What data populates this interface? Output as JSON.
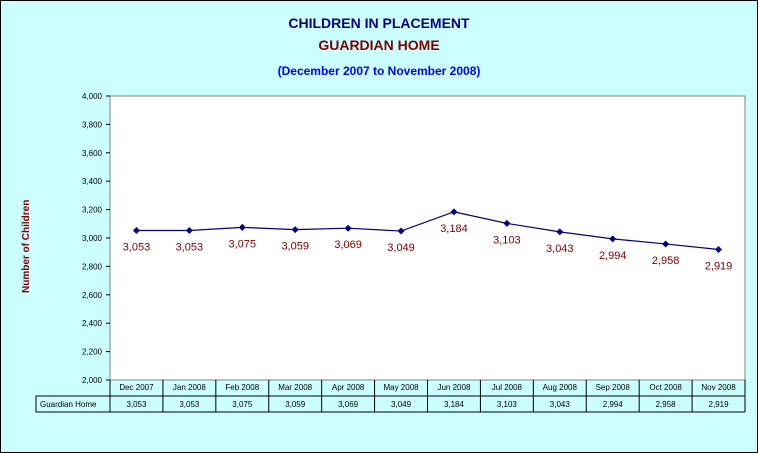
{
  "chart_data": {
    "type": "line",
    "title": "CHILDREN IN PLACEMENT",
    "subtitle": "GUARDIAN HOME",
    "period": "(December 2007 to November 2008)",
    "ylabel": "Number of Children",
    "ylim": [
      2000,
      4000
    ],
    "yticks": [
      "2,000",
      "2,200",
      "2,400",
      "2,600",
      "2,800",
      "3,000",
      "3,200",
      "3,400",
      "3,600",
      "3,800",
      "4,000"
    ],
    "ytick_values": [
      2000,
      2200,
      2400,
      2600,
      2800,
      3000,
      3200,
      3400,
      3600,
      3800,
      4000
    ],
    "categories": [
      "Dec 2007",
      "Jan 2008",
      "Feb 2008",
      "Mar 2008",
      "Apr 2008",
      "May 2008",
      "Jun 2008",
      "Jul 2008",
      "Aug 2008",
      "Sep 2008",
      "Oct 2008",
      "Nov 2008"
    ],
    "series": [
      {
        "name": "Guardian Home",
        "values": [
          3053,
          3053,
          3075,
          3059,
          3069,
          3049,
          3184,
          3103,
          3043,
          2994,
          2958,
          2919
        ],
        "labels": [
          "3,053",
          "3,053",
          "3,075",
          "3,059",
          "3,069",
          "3,049",
          "3,184",
          "3,103",
          "3,043",
          "2,994",
          "2,958",
          "2,919"
        ]
      }
    ],
    "grid": false,
    "legend": "data-table",
    "colors": {
      "background": "#ccffff",
      "plot": "#ffffff",
      "line": "#000080",
      "marker": "#000080",
      "data_label": "#800000",
      "title": "#000080",
      "subtitle": "#800000",
      "period": "#0000ff",
      "ylabel": "#800000"
    }
  }
}
